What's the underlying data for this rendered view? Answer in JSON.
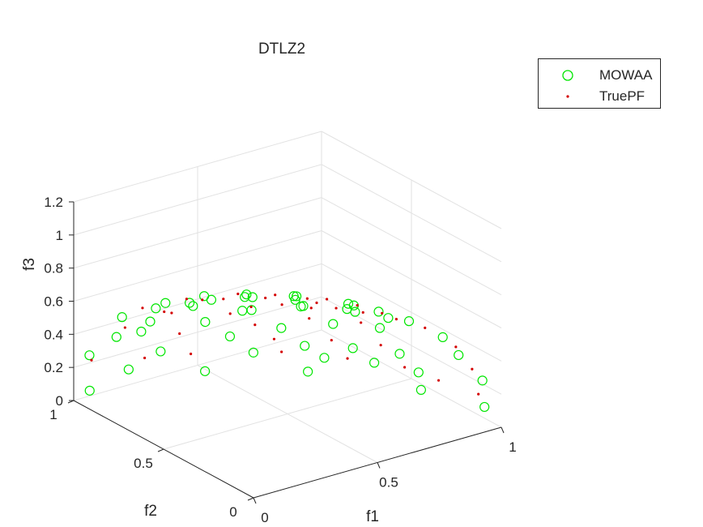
{
  "chart_data": {
    "type": "scatter",
    "title": "DTLZ2",
    "xlabel": "f1",
    "ylabel": "f2",
    "zlabel": "f3",
    "xlim": [
      0,
      1
    ],
    "ylim": [
      0,
      1
    ],
    "zlim": [
      0,
      1.2
    ],
    "xticks": [
      "0",
      "0.5",
      "1"
    ],
    "yticks": [
      "0",
      "0.5",
      "1"
    ],
    "zticks": [
      "0",
      "0.2",
      "0.4",
      "0.6",
      "0.8",
      "1",
      "1.2"
    ],
    "grid": true,
    "legend_position": "top-right outside",
    "series": [
      {
        "name": "MOWAA",
        "marker": "open-circle",
        "color": "#00e600",
        "points": [
          [
            0.05,
            0.98,
            0.05
          ],
          [
            0.02,
            0.94,
            0.3
          ],
          [
            0.1,
            0.9,
            0.4
          ],
          [
            0.2,
            0.85,
            0.48
          ],
          [
            0.05,
            0.8,
            0.6
          ],
          [
            0.15,
            0.75,
            0.64
          ],
          [
            0.25,
            0.7,
            0.66
          ],
          [
            0.08,
            0.6,
            0.79
          ],
          [
            0.2,
            0.55,
            0.81
          ],
          [
            0.32,
            0.48,
            0.81
          ],
          [
            0.12,
            0.4,
            0.91
          ],
          [
            0.25,
            0.35,
            0.9
          ],
          [
            0.38,
            0.3,
            0.88
          ],
          [
            0.1,
            0.2,
            0.97
          ],
          [
            0.3,
            0.15,
            0.94
          ],
          [
            0.45,
            0.1,
            0.89
          ],
          [
            0.58,
            0.05,
            0.81
          ],
          [
            0.7,
            0.1,
            0.71
          ],
          [
            0.8,
            0.05,
            0.6
          ],
          [
            0.9,
            0.1,
            0.42
          ],
          [
            0.96,
            0.05,
            0.27
          ],
          [
            0.99,
            0.08,
            0.08
          ],
          [
            0.6,
            0.3,
            0.74
          ],
          [
            0.5,
            0.45,
            0.74
          ],
          [
            0.4,
            0.6,
            0.69
          ],
          [
            0.3,
            0.75,
            0.59
          ],
          [
            0.2,
            0.9,
            0.39
          ],
          [
            0.7,
            0.4,
            0.59
          ],
          [
            0.6,
            0.55,
            0.58
          ],
          [
            0.5,
            0.7,
            0.51
          ],
          [
            0.4,
            0.82,
            0.41
          ],
          [
            0.3,
            0.93,
            0.21
          ],
          [
            0.8,
            0.4,
            0.45
          ],
          [
            0.72,
            0.55,
            0.42
          ],
          [
            0.62,
            0.7,
            0.35
          ],
          [
            0.5,
            0.82,
            0.28
          ],
          [
            0.88,
            0.4,
            0.26
          ],
          [
            0.8,
            0.55,
            0.24
          ],
          [
            0.7,
            0.68,
            0.22
          ],
          [
            0.58,
            0.8,
            0.16
          ],
          [
            0.92,
            0.35,
            0.16
          ],
          [
            0.85,
            0.5,
            0.16
          ],
          [
            0.75,
            0.64,
            0.15
          ],
          [
            0.93,
            0.35,
            0.05
          ],
          [
            0.72,
            0.69,
            0.05
          ],
          [
            0.45,
            0.89,
            0.05
          ],
          [
            0.2,
            0.97,
            0.12
          ],
          [
            0.55,
            0.2,
            0.81
          ],
          [
            0.65,
            0.2,
            0.73
          ],
          [
            0.35,
            0.25,
            0.9
          ]
        ]
      },
      {
        "name": "TruePF",
        "marker": "dot",
        "color": "#d40000",
        "points": [
          [
            0.05,
            0.97,
            0.24
          ],
          [
            0.12,
            0.88,
            0.46
          ],
          [
            0.22,
            0.8,
            0.56
          ],
          [
            0.06,
            0.7,
            0.71
          ],
          [
            0.18,
            0.62,
            0.76
          ],
          [
            0.3,
            0.5,
            0.81
          ],
          [
            0.12,
            0.45,
            0.88
          ],
          [
            0.28,
            0.32,
            0.9
          ],
          [
            0.42,
            0.28,
            0.86
          ],
          [
            0.15,
            0.22,
            0.96
          ],
          [
            0.32,
            0.12,
            0.94
          ],
          [
            0.5,
            0.08,
            0.86
          ],
          [
            0.62,
            0.06,
            0.78
          ],
          [
            0.75,
            0.08,
            0.66
          ],
          [
            0.86,
            0.06,
            0.51
          ],
          [
            0.94,
            0.08,
            0.33
          ],
          [
            0.98,
            0.1,
            0.15
          ],
          [
            0.55,
            0.35,
            0.76
          ],
          [
            0.45,
            0.5,
            0.74
          ],
          [
            0.35,
            0.65,
            0.67
          ],
          [
            0.25,
            0.8,
            0.54
          ],
          [
            0.66,
            0.45,
            0.6
          ],
          [
            0.55,
            0.6,
            0.58
          ],
          [
            0.45,
            0.75,
            0.48
          ],
          [
            0.34,
            0.88,
            0.33
          ],
          [
            0.76,
            0.45,
            0.47
          ],
          [
            0.66,
            0.6,
            0.45
          ],
          [
            0.55,
            0.75,
            0.37
          ],
          [
            0.84,
            0.45,
            0.3
          ],
          [
            0.75,
            0.6,
            0.28
          ],
          [
            0.62,
            0.74,
            0.26
          ],
          [
            0.9,
            0.4,
            0.17
          ],
          [
            0.8,
            0.58,
            0.16
          ],
          [
            0.65,
            0.74,
            0.17
          ],
          [
            0.4,
            0.9,
            0.17
          ],
          [
            0.6,
            0.25,
            0.76
          ],
          [
            0.7,
            0.25,
            0.67
          ],
          [
            0.4,
            0.2,
            0.89
          ],
          [
            0.95,
            0.28,
            0.14
          ],
          [
            0.25,
            0.95,
            0.18
          ]
        ]
      }
    ]
  },
  "legend": {
    "items": [
      "MOWAA",
      "TruePF"
    ]
  }
}
